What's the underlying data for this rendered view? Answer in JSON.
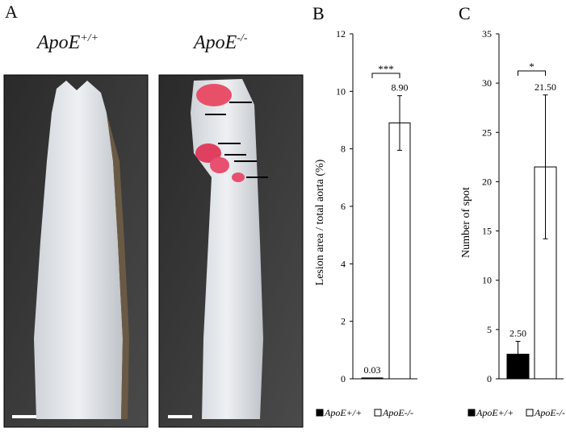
{
  "panel_a": {
    "letter": "A",
    "left_label": {
      "base": "ApoE",
      "sup": "+/+"
    },
    "right_label": {
      "base": "ApoE",
      "sup": "-/-"
    }
  },
  "chart_data": [
    {
      "type": "bar",
      "letter": "B",
      "categories": [
        "ApoE+/+",
        "ApoE-/-"
      ],
      "values": [
        0.03,
        8.9
      ],
      "value_labels": [
        "0.03",
        "8.90"
      ],
      "errors": [
        0.0,
        0.95
      ],
      "colors": [
        "#000000",
        "#ffffff"
      ],
      "ylabel": "Lesion area / total aorta (%)",
      "ylim": [
        0,
        12
      ],
      "yticks": [
        0,
        2,
        4,
        6,
        8,
        10,
        12
      ],
      "significance": "***",
      "legend": [
        "ApoE+/+",
        "ApoE-/-"
      ],
      "legend_position": "bottom"
    },
    {
      "type": "bar",
      "letter": "C",
      "categories": [
        "ApoE+/+",
        "ApoE-/-"
      ],
      "values": [
        2.5,
        21.5
      ],
      "value_labels": [
        "2.50",
        "21.50"
      ],
      "errors": [
        1.3,
        7.3
      ],
      "colors": [
        "#000000",
        "#ffffff"
      ],
      "ylabel": "Number of spot",
      "ylim": [
        0,
        35
      ],
      "yticks": [
        0,
        5,
        10,
        15,
        20,
        25,
        30,
        35
      ],
      "significance": "*",
      "legend": [
        "ApoE+/+",
        "ApoE-/-"
      ],
      "legend_position": "bottom"
    }
  ]
}
